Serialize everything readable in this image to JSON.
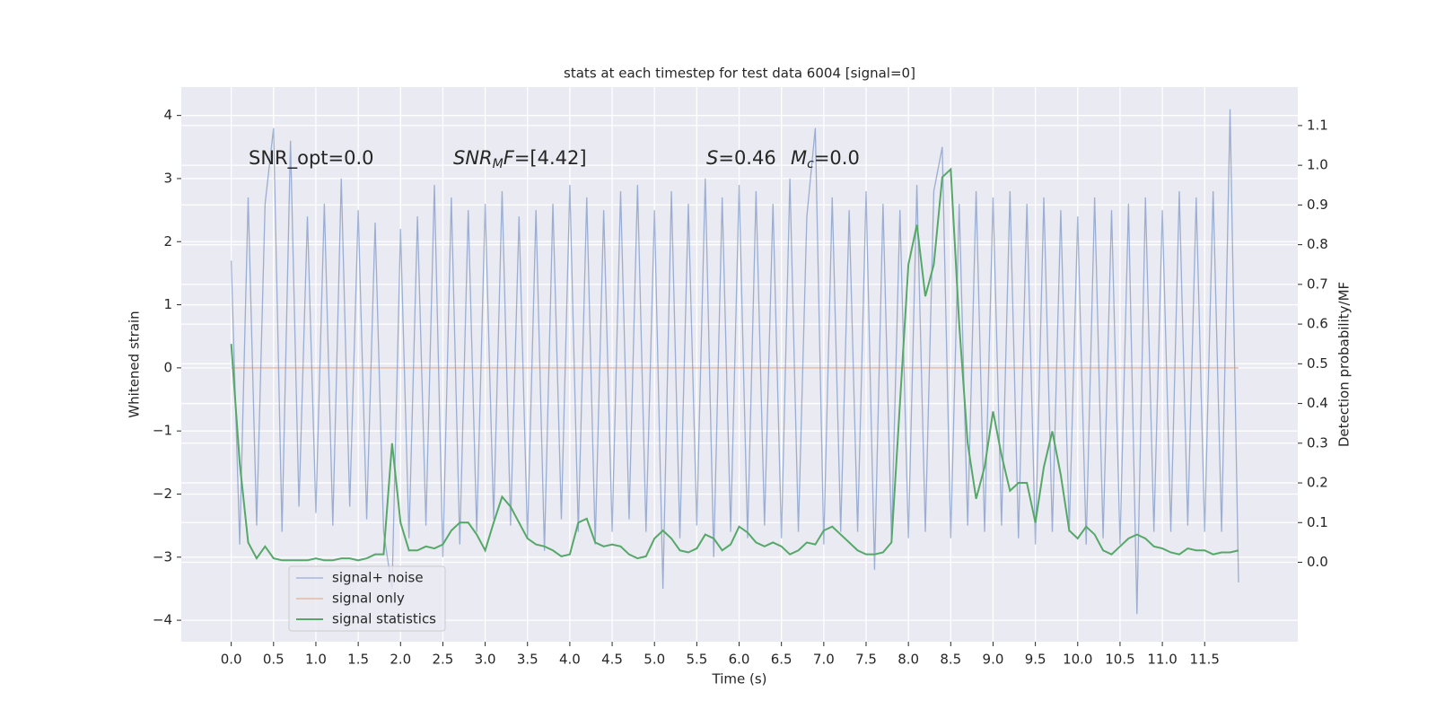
{
  "chart_data": {
    "type": "line",
    "title": "stats at each timestep for test data 6004 [signal=0]",
    "xlabel": "Time (s)",
    "ylabel": "Whitened strain",
    "y2label": "Detection probability/MF",
    "annotations": [
      [
        "SNR_opt=0.0"
      ],
      [
        "SNR",
        "M",
        "F",
        "=[4.42]"
      ],
      [
        "S",
        "=0.46"
      ],
      [
        "M",
        "c",
        "=0.0"
      ]
    ],
    "x": [
      0,
      0.1,
      0.2,
      0.3,
      0.4,
      0.5,
      0.6,
      0.7,
      0.8,
      0.9,
      1,
      1.1,
      1.2,
      1.3,
      1.4,
      1.5,
      1.6,
      1.7,
      1.8,
      1.9,
      2,
      2.1,
      2.2,
      2.3,
      2.4,
      2.5,
      2.6,
      2.7,
      2.8,
      2.9,
      3,
      3.1,
      3.2,
      3.3,
      3.4,
      3.5,
      3.6,
      3.7,
      3.8,
      3.9,
      4,
      4.1,
      4.2,
      4.3,
      4.4,
      4.5,
      4.6,
      4.7,
      4.8,
      4.9,
      5,
      5.1,
      5.2,
      5.3,
      5.4,
      5.5,
      5.6,
      5.7,
      5.8,
      5.9,
      6,
      6.1,
      6.2,
      6.3,
      6.4,
      6.5,
      6.6,
      6.7,
      6.8,
      6.9,
      7,
      7.1,
      7.2,
      7.3,
      7.4,
      7.5,
      7.6,
      7.7,
      7.8,
      7.9,
      8,
      8.1,
      8.2,
      8.3,
      8.4,
      8.5,
      8.6,
      8.7,
      8.8,
      8.9,
      9,
      9.1,
      9.2,
      9.3,
      9.4,
      9.5,
      9.6,
      9.7,
      9.8,
      9.9,
      10,
      10.1,
      10.2,
      10.3,
      10.4,
      10.5,
      10.6,
      10.7,
      10.8,
      10.9,
      11,
      11.1,
      11.2,
      11.3,
      11.4,
      11.5,
      11.6,
      11.7,
      11.8,
      11.9
    ],
    "series": [
      {
        "name": "signal+ noise",
        "color": "#4c72b0",
        "values": [
          1.7,
          -2.8,
          2.7,
          -2.5,
          2.6,
          3.8,
          -2.6,
          3.6,
          -2.2,
          2.4,
          -2.3,
          2.6,
          -2.5,
          3.0,
          -2.2,
          2.5,
          -2.4,
          2.3,
          -2.6,
          -3.5,
          2.2,
          -2.7,
          2.4,
          -2.5,
          2.9,
          -3.0,
          2.7,
          -2.8,
          2.5,
          -2.6,
          2.6,
          -2.4,
          2.8,
          -2.5,
          2.4,
          -2.7,
          2.5,
          -2.9,
          2.6,
          -2.4,
          2.9,
          -2.6,
          2.7,
          -2.8,
          2.5,
          -2.6,
          2.8,
          -2.4,
          2.9,
          -2.6,
          2.5,
          -3.5,
          2.8,
          -2.7,
          2.6,
          -2.5,
          3.0,
          -3.0,
          2.7,
          -2.6,
          2.9,
          -2.7,
          2.8,
          -2.5,
          2.6,
          -2.7,
          3.0,
          -2.6,
          2.4,
          3.8,
          -2.8,
          2.7,
          -2.6,
          2.5,
          -2.6,
          2.8,
          -3.2,
          2.6,
          -2.7,
          2.5,
          -2.7,
          2.9,
          -2.6,
          2.8,
          3.5,
          -2.7,
          2.6,
          -2.5,
          2.8,
          -2.6,
          2.7,
          -2.5,
          2.8,
          -2.7,
          2.6,
          -2.8,
          2.7,
          -2.6,
          2.5,
          -2.6,
          2.4,
          -2.8,
          2.7,
          -2.7,
          2.5,
          -2.8,
          2.6,
          -3.9,
          2.7,
          -2.6,
          2.5,
          -2.6,
          2.8,
          -2.5,
          2.7,
          -2.6,
          2.8,
          -2.6,
          4.1,
          -3.4
        ]
      },
      {
        "name": "signal only",
        "color": "#dd8452",
        "values": [
          0,
          0,
          0,
          0,
          0,
          0,
          0,
          0,
          0,
          0,
          0,
          0,
          0,
          0,
          0,
          0,
          0,
          0,
          0,
          0,
          0,
          0,
          0,
          0,
          0,
          0,
          0,
          0,
          0,
          0,
          0,
          0,
          0,
          0,
          0,
          0,
          0,
          0,
          0,
          0,
          0,
          0,
          0,
          0,
          0,
          0,
          0,
          0,
          0,
          0,
          0,
          0,
          0,
          0,
          0,
          0,
          0,
          0,
          0,
          0,
          0,
          0,
          0,
          0,
          0,
          0,
          0,
          0,
          0,
          0,
          0,
          0,
          0,
          0,
          0,
          0,
          0,
          0,
          0,
          0,
          0,
          0,
          0,
          0,
          0,
          0,
          0,
          0,
          0,
          0,
          0,
          0,
          0,
          0,
          0,
          0,
          0,
          0,
          0,
          0,
          0,
          0,
          0,
          0,
          0,
          0,
          0,
          0,
          0,
          0,
          0,
          0,
          0,
          0,
          0,
          0,
          0,
          0,
          0,
          0
        ]
      },
      {
        "name": "signal statistics",
        "color": "#55a868",
        "axis": "y2",
        "values": [
          0.55,
          0.25,
          0.05,
          0.01,
          0.04,
          0.01,
          0.005,
          0.005,
          0.005,
          0.005,
          0.01,
          0.005,
          0.005,
          0.01,
          0.01,
          0.005,
          0.01,
          0.02,
          0.02,
          0.3,
          0.1,
          0.03,
          0.03,
          0.04,
          0.035,
          0.045,
          0.08,
          0.1,
          0.1,
          0.07,
          0.03,
          0.1,
          0.165,
          0.14,
          0.1,
          0.06,
          0.045,
          0.04,
          0.03,
          0.015,
          0.02,
          0.1,
          0.11,
          0.05,
          0.04,
          0.045,
          0.04,
          0.02,
          0.01,
          0.015,
          0.06,
          0.08,
          0.06,
          0.03,
          0.025,
          0.035,
          0.07,
          0.06,
          0.03,
          0.045,
          0.09,
          0.075,
          0.05,
          0.04,
          0.05,
          0.04,
          0.02,
          0.03,
          0.05,
          0.045,
          0.08,
          0.09,
          0.07,
          0.05,
          0.03,
          0.02,
          0.02,
          0.025,
          0.05,
          0.4,
          0.75,
          0.85,
          0.67,
          0.75,
          0.97,
          0.99,
          0.6,
          0.3,
          0.16,
          0.24,
          0.38,
          0.27,
          0.18,
          0.2,
          0.2,
          0.1,
          0.24,
          0.33,
          0.22,
          0.08,
          0.06,
          0.09,
          0.07,
          0.03,
          0.02,
          0.04,
          0.06,
          0.07,
          0.06,
          0.04,
          0.035,
          0.025,
          0.02,
          0.035,
          0.03,
          0.03,
          0.02,
          0.025,
          0.025,
          0.03
        ]
      }
    ],
    "xlim": [
      -0.59,
      12.6
    ],
    "xticks": [
      {
        "value": 0,
        "label": "0.0"
      },
      {
        "value": 0.5,
        "label": "0.5"
      },
      {
        "value": 1,
        "label": "1.0"
      },
      {
        "value": 1.5,
        "label": "1.5"
      },
      {
        "value": 2,
        "label": "2.0"
      },
      {
        "value": 2.5,
        "label": "2.5"
      },
      {
        "value": 3,
        "label": "3.0"
      },
      {
        "value": 3.5,
        "label": "3.5"
      },
      {
        "value": 4,
        "label": "4.0"
      },
      {
        "value": 4.5,
        "label": "4.5"
      },
      {
        "value": 5,
        "label": "5.0"
      },
      {
        "value": 5.5,
        "label": "5.5"
      },
      {
        "value": 6,
        "label": "6.0"
      },
      {
        "value": 6.5,
        "label": "6.5"
      },
      {
        "value": 7,
        "label": "7.0"
      },
      {
        "value": 7.5,
        "label": "7.5"
      },
      {
        "value": 8,
        "label": "8.0"
      },
      {
        "value": 8.5,
        "label": "8.5"
      },
      {
        "value": 9,
        "label": "9.0"
      },
      {
        "value": 9.5,
        "label": "9.5"
      },
      {
        "value": 10,
        "label": "10.0"
      },
      {
        "value": 10.5,
        "label": "10.5"
      },
      {
        "value": 11,
        "label": "11.0"
      },
      {
        "value": 11.5,
        "label": "11.5"
      }
    ],
    "ylim": [
      -4.34,
      4.45
    ],
    "yticks": [
      {
        "value": -4,
        "label": "−4"
      },
      {
        "value": -3,
        "label": "−3"
      },
      {
        "value": -2,
        "label": "−2"
      },
      {
        "value": -1,
        "label": "−1"
      },
      0,
      1,
      2,
      3,
      4
    ],
    "y2lim": [
      -0.2,
      1.197
    ],
    "y2ticks": [
      {
        "value": 0,
        "label": "0.0"
      },
      {
        "value": 0.1,
        "label": "0.1"
      },
      {
        "value": 0.2,
        "label": "0.2"
      },
      {
        "value": 0.3,
        "label": "0.3"
      },
      {
        "value": 0.4,
        "label": "0.4"
      },
      {
        "value": 0.5,
        "label": "0.5"
      },
      {
        "value": 0.6,
        "label": "0.6"
      },
      {
        "value": 0.7,
        "label": "0.7"
      },
      {
        "value": 0.8,
        "label": "0.8"
      },
      {
        "value": 0.9,
        "label": "0.9"
      },
      {
        "value": 1,
        "label": "1.0"
      },
      {
        "value": 1.1,
        "label": "1.1"
      }
    ],
    "grid": true,
    "legend": "lower left"
  }
}
